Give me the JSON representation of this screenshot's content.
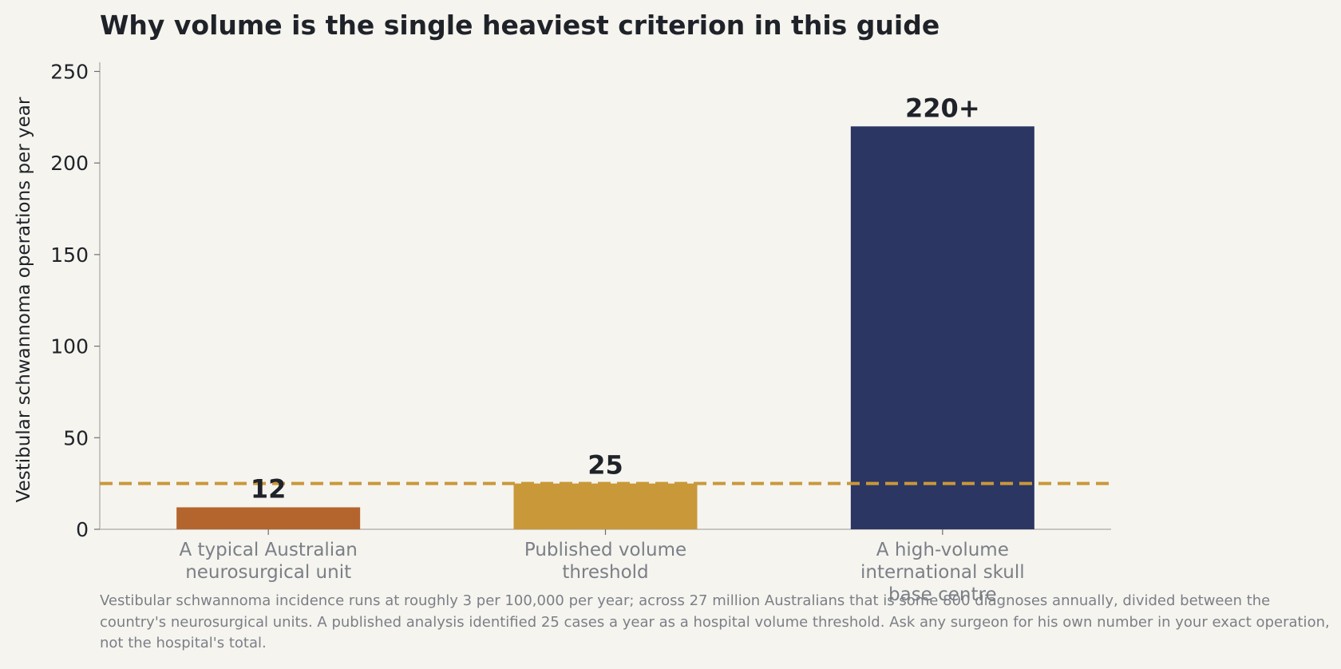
{
  "chart_data": {
    "type": "bar",
    "title": "Why volume is the single heaviest criterion in this guide",
    "ylabel": "Vestibular schwannoma operations per year",
    "xlabel": "",
    "ylim": [
      0,
      255
    ],
    "yticks": [
      0,
      50,
      100,
      150,
      200,
      250
    ],
    "grid": false,
    "categories": [
      "A typical Australian neurosurgical unit",
      "Published volume threshold",
      "A high-volume international skull base centre"
    ],
    "category_lines": [
      [
        "A typical Australian",
        "neurosurgical unit"
      ],
      [
        "Published volume",
        "threshold"
      ],
      [
        "A high-volume",
        "international skull",
        "base centre"
      ]
    ],
    "values": [
      12,
      25,
      220
    ],
    "data_labels": [
      "12",
      "25",
      "220+"
    ],
    "colors": [
      "#b4652e",
      "#c99839",
      "#2b3663"
    ],
    "reference_line": {
      "value": 25,
      "style": "dashed",
      "color": "#c99839"
    }
  },
  "footnote": "Vestibular schwannoma incidence runs at roughly 3 per 100,000 per year; across 27 million Australians that is some 800 diagnoses annually, divided between the country's neurosurgical units. A published analysis identified 25 cases a year as a hospital volume threshold. Ask any surgeon for his own number in your exact operation, not the hospital's total."
}
